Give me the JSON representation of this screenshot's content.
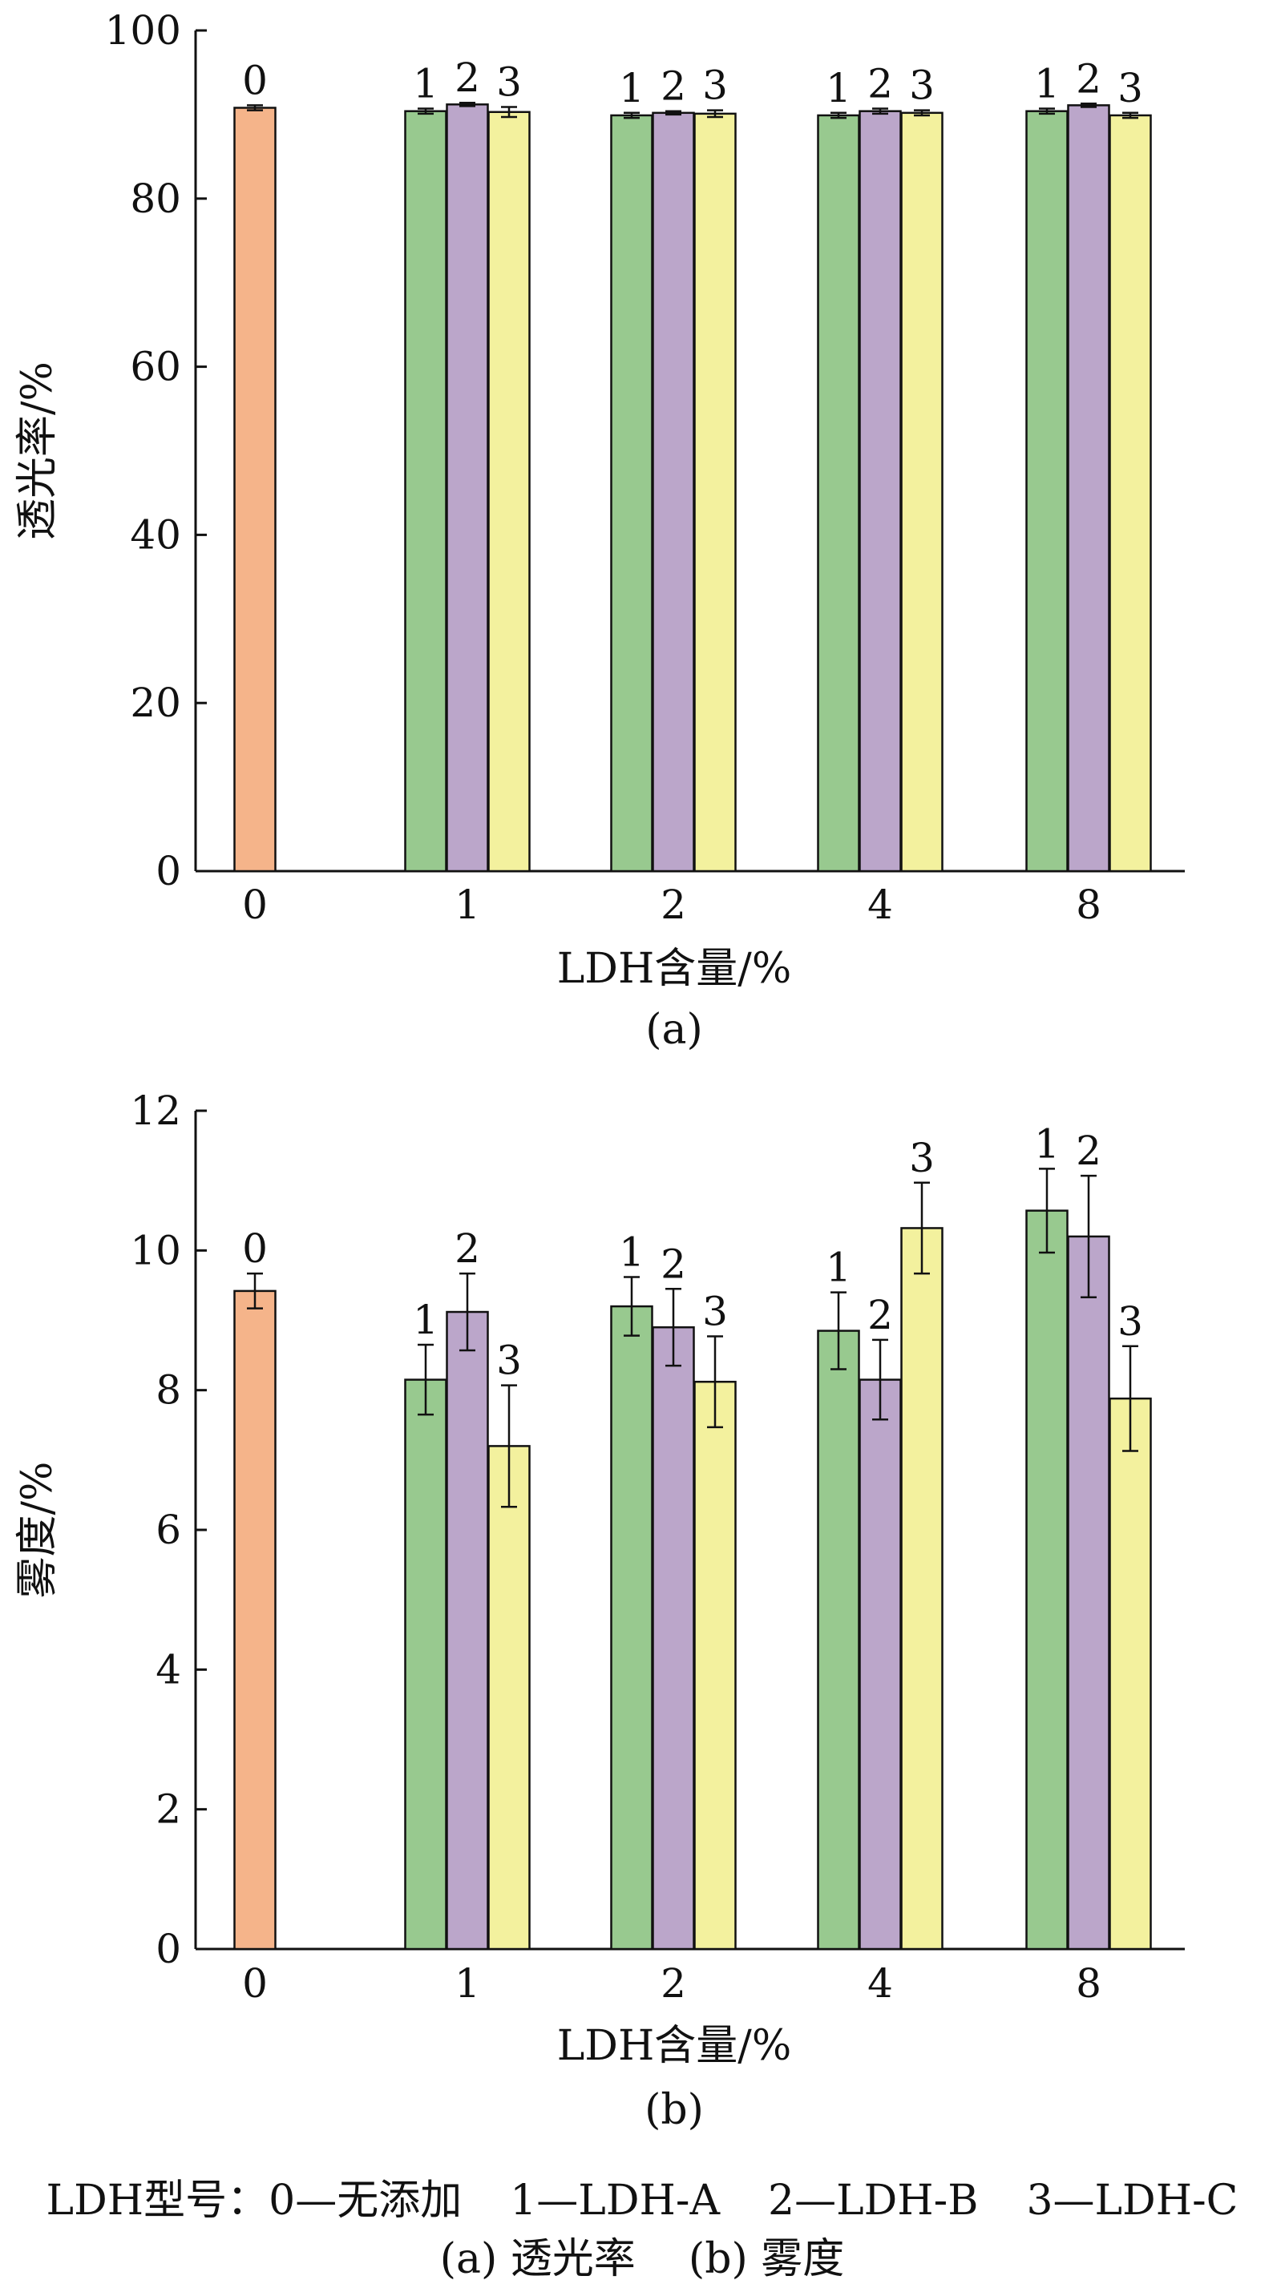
{
  "chart_data": [
    {
      "type": "bar",
      "panel_label": "(a)",
      "xlabel": "LDH含量/%",
      "ylabel": "透光率/%",
      "ylim": [
        0,
        100
      ],
      "yticks": [
        0,
        20,
        40,
        60,
        80,
        100
      ],
      "grid": false,
      "groups": [
        {
          "label": "0",
          "bars": [
            {
              "type": "0",
              "value": 90.8,
              "err": 0.3
            }
          ]
        },
        {
          "label": "1",
          "bars": [
            {
              "type": "1",
              "value": 90.4,
              "err": 0.3
            },
            {
              "type": "2",
              "value": 91.2,
              "err": 0.2
            },
            {
              "type": "3",
              "value": 90.3,
              "err": 0.6
            }
          ]
        },
        {
          "label": "2",
          "bars": [
            {
              "type": "1",
              "value": 89.9,
              "err": 0.3
            },
            {
              "type": "2",
              "value": 90.2,
              "err": 0.2
            },
            {
              "type": "3",
              "value": 90.1,
              "err": 0.4
            }
          ]
        },
        {
          "label": "4",
          "bars": [
            {
              "type": "1",
              "value": 89.9,
              "err": 0.3
            },
            {
              "type": "2",
              "value": 90.4,
              "err": 0.3
            },
            {
              "type": "3",
              "value": 90.2,
              "err": 0.3
            }
          ]
        },
        {
          "label": "8",
          "bars": [
            {
              "type": "1",
              "value": 90.4,
              "err": 0.3
            },
            {
              "type": "2",
              "value": 91.1,
              "err": 0.2
            },
            {
              "type": "3",
              "value": 89.9,
              "err": 0.3
            }
          ]
        }
      ]
    },
    {
      "type": "bar",
      "panel_label": "(b)",
      "xlabel": "LDH含量/%",
      "ylabel": "雾度/%",
      "ylim": [
        0,
        12
      ],
      "yticks": [
        0,
        2,
        4,
        6,
        8,
        10,
        12
      ],
      "grid": false,
      "groups": [
        {
          "label": "0",
          "bars": [
            {
              "type": "0",
              "value": 9.42,
              "err": 0.25
            }
          ]
        },
        {
          "label": "1",
          "bars": [
            {
              "type": "1",
              "value": 8.15,
              "err": 0.5
            },
            {
              "type": "2",
              "value": 9.12,
              "err": 0.55
            },
            {
              "type": "3",
              "value": 7.2,
              "err": 0.87
            }
          ]
        },
        {
          "label": "2",
          "bars": [
            {
              "type": "1",
              "value": 9.2,
              "err": 0.42
            },
            {
              "type": "2",
              "value": 8.9,
              "err": 0.55
            },
            {
              "type": "3",
              "value": 8.12,
              "err": 0.65
            }
          ]
        },
        {
          "label": "4",
          "bars": [
            {
              "type": "1",
              "value": 8.85,
              "err": 0.55
            },
            {
              "type": "2",
              "value": 8.15,
              "err": 0.57
            },
            {
              "type": "3",
              "value": 10.32,
              "err": 0.65
            }
          ]
        },
        {
          "label": "8",
          "bars": [
            {
              "type": "1",
              "value": 10.57,
              "err": 0.6
            },
            {
              "type": "2",
              "value": 10.2,
              "err": 0.87
            },
            {
              "type": "3",
              "value": 7.88,
              "err": 0.75
            }
          ]
        }
      ]
    }
  ],
  "colors": {
    "0": "#f5b48a",
    "1": "#98c98f",
    "2": "#bba6ca",
    "3": "#f3f19e"
  },
  "legend": {
    "prefix": "LDH型号：",
    "entries": [
      "0—无添加",
      "1—LDH-A",
      "2—LDH-B",
      "3—LDH-C"
    ]
  },
  "caption": "(a) 透光率    (b) 雾度"
}
